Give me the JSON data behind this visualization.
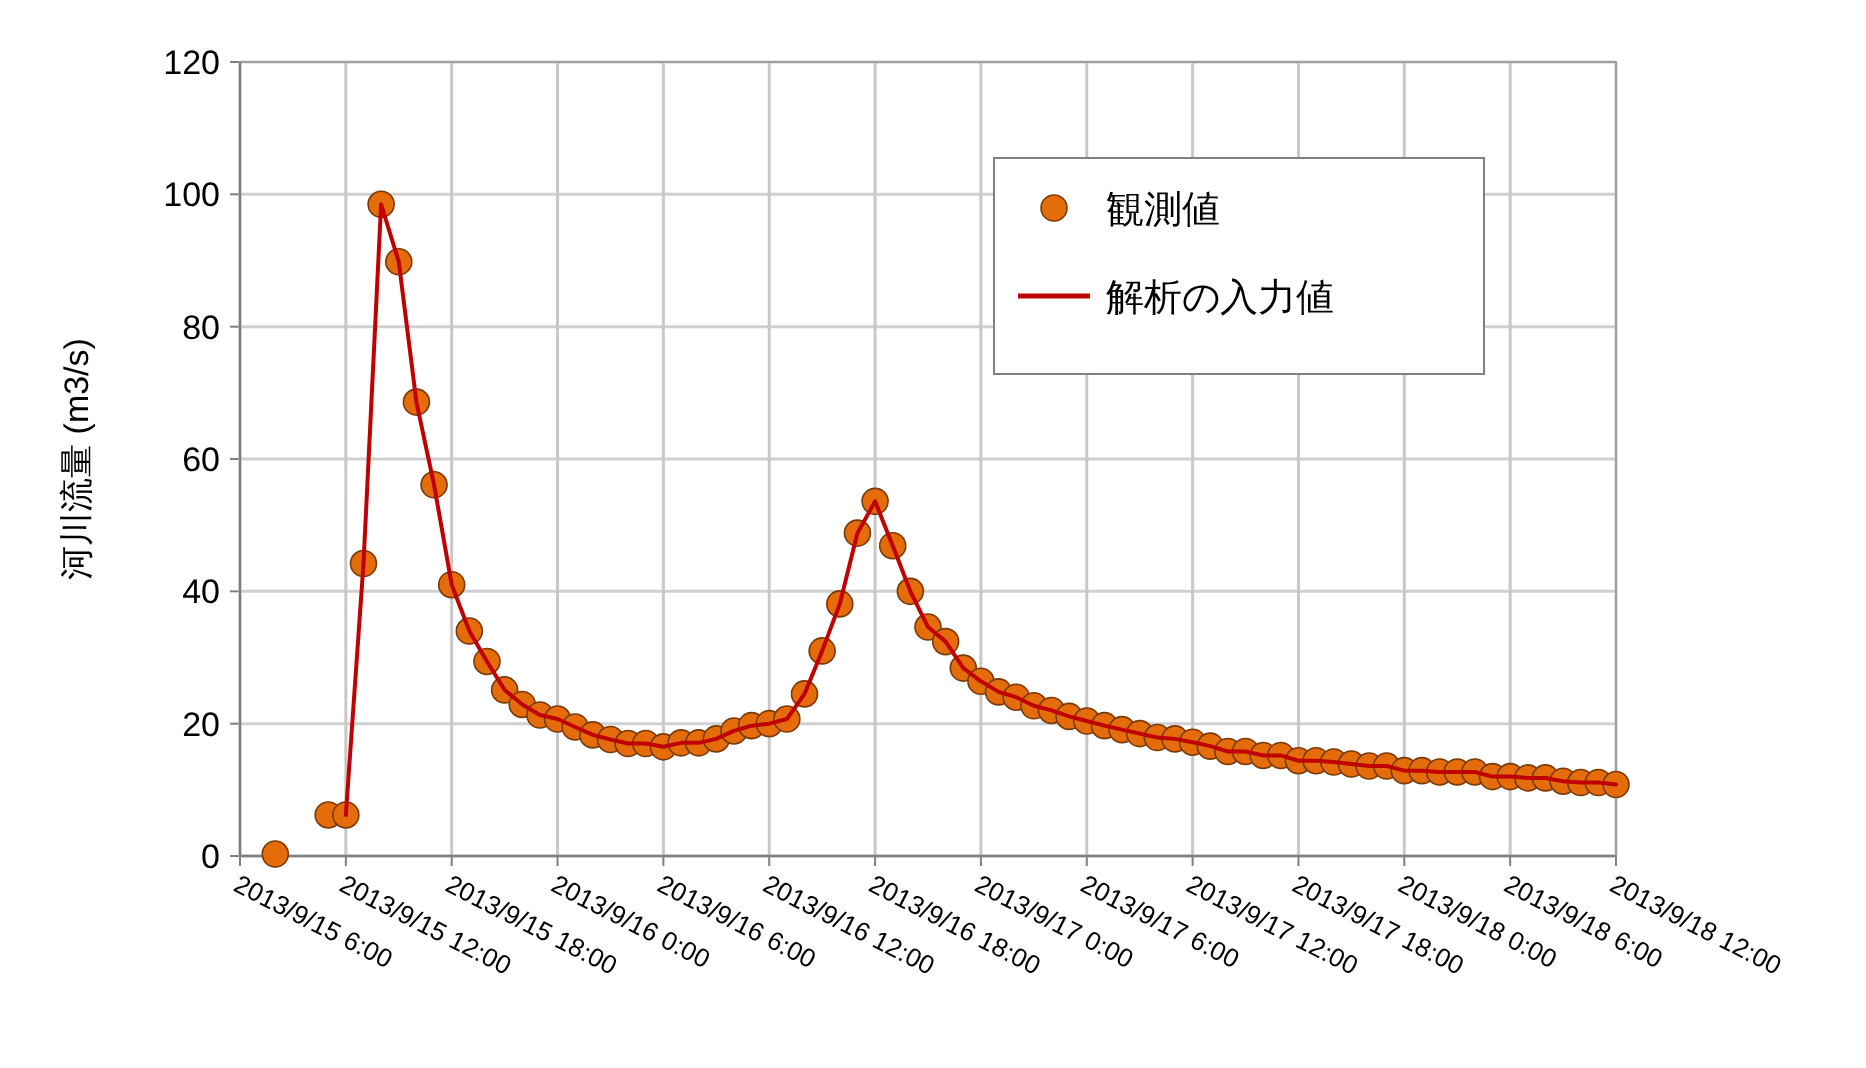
{
  "chart_data": {
    "type": "line",
    "ylabel": "河川流量 (m3/s)",
    "xlim": [
      "2013-09-15T06:00",
      "2013-09-18T12:00"
    ],
    "xticks": [
      {
        "value": "2013-09-15T06:00",
        "label": "2013/9/15 6:00"
      },
      {
        "value": "2013-09-15T12:00",
        "label": "2013/9/15 12:00"
      },
      {
        "value": "2013-09-15T18:00",
        "label": "2013/9/15 18:00"
      },
      {
        "value": "2013-09-16T00:00",
        "label": "2013/9/16 0:00"
      },
      {
        "value": "2013-09-16T06:00",
        "label": "2013/9/16 6:00"
      },
      {
        "value": "2013-09-16T12:00",
        "label": "2013/9/16 12:00"
      },
      {
        "value": "2013-09-16T18:00",
        "label": "2013/9/16 18:00"
      },
      {
        "value": "2013-09-17T00:00",
        "label": "2013/9/17 0:00"
      },
      {
        "value": "2013-09-17T06:00",
        "label": "2013/9/17 6:00"
      },
      {
        "value": "2013-09-17T12:00",
        "label": "2013/9/17 12:00"
      },
      {
        "value": "2013-09-17T18:00",
        "label": "2013/9/17 18:00"
      },
      {
        "value": "2013-09-18T00:00",
        "label": "2013/9/18 0:00"
      },
      {
        "value": "2013-09-18T06:00",
        "label": "2013/9/18 6:00"
      },
      {
        "value": "2013-09-18T12:00",
        "label": "2013/9/18 12:00"
      }
    ],
    "ylim": [
      0,
      120
    ],
    "yticks": [
      0,
      20,
      40,
      60,
      80,
      100,
      120
    ],
    "grid": true,
    "legend": "top right",
    "series": [
      {
        "name": "観測値",
        "type": "scatter",
        "marker": "circle",
        "color": "#e46c0a",
        "x": [
          "2013-09-15T08:00",
          "2013-09-15T11:00",
          "2013-09-15T12:00",
          "2013-09-15T13:00",
          "2013-09-15T14:00",
          "2013-09-15T15:00",
          "2013-09-15T16:00",
          "2013-09-15T17:00",
          "2013-09-15T18:00",
          "2013-09-15T19:00",
          "2013-09-15T20:00",
          "2013-09-15T21:00",
          "2013-09-15T22:00",
          "2013-09-15T23:00",
          "2013-09-16T00:00",
          "2013-09-16T01:00",
          "2013-09-16T02:00",
          "2013-09-16T03:00",
          "2013-09-16T04:00",
          "2013-09-16T05:00",
          "2013-09-16T06:00",
          "2013-09-16T07:00",
          "2013-09-16T08:00",
          "2013-09-16T09:00",
          "2013-09-16T10:00",
          "2013-09-16T11:00",
          "2013-09-16T12:00",
          "2013-09-16T13:00",
          "2013-09-16T14:00",
          "2013-09-16T15:00",
          "2013-09-16T16:00",
          "2013-09-16T17:00",
          "2013-09-16T18:00",
          "2013-09-16T19:00",
          "2013-09-16T20:00",
          "2013-09-16T21:00",
          "2013-09-16T22:00",
          "2013-09-16T23:00",
          "2013-09-17T00:00",
          "2013-09-17T01:00",
          "2013-09-17T02:00",
          "2013-09-17T03:00",
          "2013-09-17T04:00",
          "2013-09-17T05:00",
          "2013-09-17T06:00",
          "2013-09-17T07:00",
          "2013-09-17T08:00",
          "2013-09-17T09:00",
          "2013-09-17T10:00",
          "2013-09-17T11:00",
          "2013-09-17T12:00",
          "2013-09-17T13:00",
          "2013-09-17T14:00",
          "2013-09-17T15:00",
          "2013-09-17T16:00",
          "2013-09-17T17:00",
          "2013-09-17T18:00",
          "2013-09-17T19:00",
          "2013-09-17T20:00",
          "2013-09-17T21:00",
          "2013-09-17T22:00",
          "2013-09-17T23:00",
          "2013-09-18T00:00",
          "2013-09-18T01:00",
          "2013-09-18T02:00",
          "2013-09-18T03:00",
          "2013-09-18T04:00",
          "2013-09-18T05:00",
          "2013-09-18T06:00",
          "2013-09-18T07:00",
          "2013-09-18T08:00",
          "2013-09-18T09:00",
          "2013-09-18T10:00",
          "2013-09-18T11:00",
          "2013-09-18T12:00"
        ],
        "values": [
          0.3,
          6.2,
          6.2,
          44.2,
          98.5,
          89.8,
          68.6,
          56.1,
          41.0,
          34.0,
          29.4,
          25.1,
          22.9,
          21.3,
          20.7,
          19.5,
          18.3,
          17.6,
          17.0,
          17.0,
          16.5,
          17.1,
          17.1,
          17.7,
          18.9,
          19.7,
          20.0,
          20.7,
          24.5,
          31.0,
          38.1,
          48.8,
          53.6,
          46.9,
          40.0,
          34.6,
          32.4,
          28.4,
          26.4,
          24.8,
          24.0,
          22.7,
          22.0,
          21.1,
          20.4,
          19.7,
          19.1,
          18.5,
          17.9,
          17.7,
          17.2,
          16.6,
          15.8,
          15.8,
          15.2,
          15.2,
          14.4,
          14.4,
          14.2,
          13.9,
          13.6,
          13.6,
          12.9,
          12.9,
          12.7,
          12.7,
          12.7,
          12.0,
          12.0,
          11.8,
          11.8,
          11.3,
          11.1,
          11.1,
          10.8
        ]
      },
      {
        "name": "解析の入力値",
        "type": "line",
        "marker": "none",
        "line_style": "solid",
        "color": "#c00000",
        "x": [
          "2013-09-15T12:00",
          "2013-09-15T13:00",
          "2013-09-15T14:00",
          "2013-09-15T15:00",
          "2013-09-15T16:00",
          "2013-09-15T17:00",
          "2013-09-15T18:00",
          "2013-09-15T19:00",
          "2013-09-15T20:00",
          "2013-09-15T21:00",
          "2013-09-15T22:00",
          "2013-09-15T23:00",
          "2013-09-16T00:00",
          "2013-09-16T01:00",
          "2013-09-16T02:00",
          "2013-09-16T03:00",
          "2013-09-16T04:00",
          "2013-09-16T05:00",
          "2013-09-16T06:00",
          "2013-09-16T07:00",
          "2013-09-16T08:00",
          "2013-09-16T09:00",
          "2013-09-16T10:00",
          "2013-09-16T11:00",
          "2013-09-16T12:00",
          "2013-09-16T13:00",
          "2013-09-16T14:00",
          "2013-09-16T15:00",
          "2013-09-16T16:00",
          "2013-09-16T17:00",
          "2013-09-16T18:00",
          "2013-09-16T19:00",
          "2013-09-16T20:00",
          "2013-09-16T21:00",
          "2013-09-16T22:00",
          "2013-09-16T23:00",
          "2013-09-17T00:00",
          "2013-09-17T01:00",
          "2013-09-17T02:00",
          "2013-09-17T03:00",
          "2013-09-17T04:00",
          "2013-09-17T05:00",
          "2013-09-17T06:00",
          "2013-09-17T07:00",
          "2013-09-17T08:00",
          "2013-09-17T09:00",
          "2013-09-17T10:00",
          "2013-09-17T11:00",
          "2013-09-17T12:00",
          "2013-09-17T13:00",
          "2013-09-17T14:00",
          "2013-09-17T15:00",
          "2013-09-17T16:00",
          "2013-09-17T17:00",
          "2013-09-17T18:00",
          "2013-09-17T19:00",
          "2013-09-17T20:00",
          "2013-09-17T21:00",
          "2013-09-17T22:00",
          "2013-09-17T23:00",
          "2013-09-18T00:00",
          "2013-09-18T01:00",
          "2013-09-18T02:00",
          "2013-09-18T03:00",
          "2013-09-18T04:00",
          "2013-09-18T05:00",
          "2013-09-18T06:00",
          "2013-09-18T07:00",
          "2013-09-18T08:00",
          "2013-09-18T09:00",
          "2013-09-18T10:00",
          "2013-09-18T11:00",
          "2013-09-18T12:00"
        ],
        "values": [
          6.2,
          44.2,
          98.5,
          89.8,
          68.6,
          56.1,
          41.0,
          34.0,
          29.4,
          25.1,
          22.9,
          21.3,
          20.7,
          19.5,
          18.3,
          17.6,
          17.0,
          17.0,
          16.5,
          17.1,
          17.1,
          17.7,
          18.9,
          19.7,
          20.0,
          20.7,
          24.5,
          31.0,
          38.1,
          48.8,
          53.6,
          46.9,
          40.0,
          34.6,
          32.4,
          28.4,
          26.4,
          24.8,
          24.0,
          22.7,
          22.0,
          21.1,
          20.4,
          19.7,
          19.1,
          18.5,
          17.9,
          17.7,
          17.2,
          16.6,
          15.8,
          15.8,
          15.2,
          15.2,
          14.4,
          14.4,
          14.2,
          13.9,
          13.6,
          13.6,
          12.9,
          12.9,
          12.7,
          12.7,
          12.7,
          12.0,
          12.0,
          11.8,
          11.8,
          11.3,
          11.1,
          11.1,
          10.8
        ]
      }
    ]
  }
}
